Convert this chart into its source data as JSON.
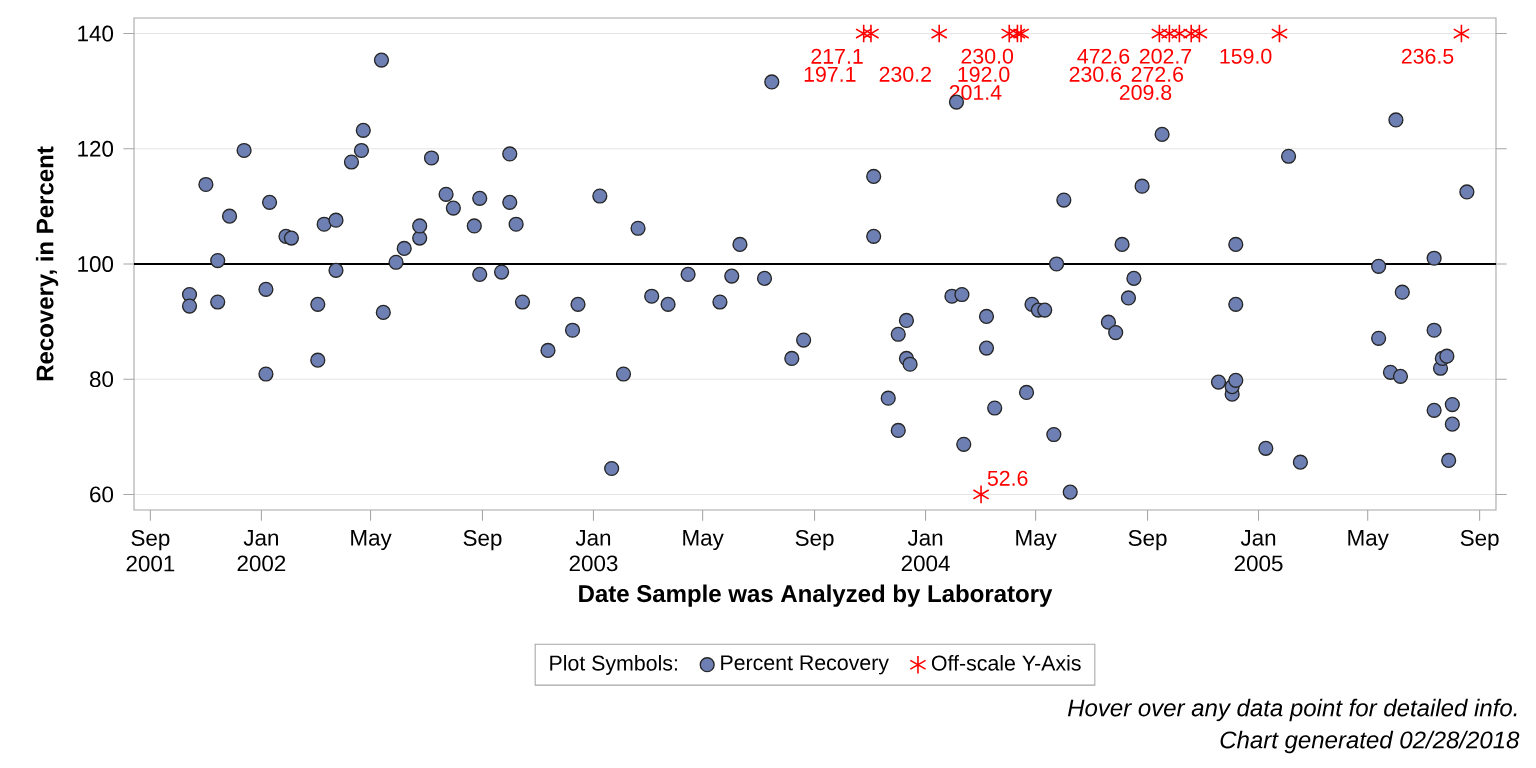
{
  "chart_data": {
    "type": "scatter",
    "xlabel": "Date Sample was Analyzed by Laboratory",
    "ylabel": "Recovery, in Percent",
    "legend_title": "Plot Symbols:",
    "legend": "bottom",
    "grid": "y",
    "xlim": [
      "2001-08-14",
      "2005-09-19"
    ],
    "ylim": [
      57.3,
      142.7
    ],
    "xticks": [
      {
        "value": "2001-09",
        "label": "Sep 2001"
      },
      {
        "value": "2002-01",
        "label": "Jan 2002"
      },
      {
        "value": "2002-05",
        "label": "May"
      },
      {
        "value": "2002-09",
        "label": "Sep"
      },
      {
        "value": "2003-01",
        "label": "Jan 2003"
      },
      {
        "value": "2003-05",
        "label": "May"
      },
      {
        "value": "2003-09",
        "label": "Sep"
      },
      {
        "value": "2004-01",
        "label": "Jan 2004"
      },
      {
        "value": "2004-05",
        "label": "May"
      },
      {
        "value": "2004-09",
        "label": "Sep"
      },
      {
        "value": "2005-01",
        "label": "Jan 2005"
      },
      {
        "value": "2005-05",
        "label": "May"
      },
      {
        "value": "2005-09",
        "label": "Sep"
      }
    ],
    "yticks": [
      60,
      80,
      100,
      120,
      140
    ],
    "ref_lines": [
      {
        "axis": "y",
        "value": 100,
        "color": "#000000"
      }
    ],
    "series": [
      {
        "name": "Percent Recovery",
        "color": "#6d7fb3",
        "marker": "circle",
        "x": [
          "2001-10-14",
          "2001-10-14",
          "2001-11-01",
          "2001-11-14",
          "2001-11-14",
          "2001-11-27",
          "2001-12-13",
          "2002-01-06",
          "2002-01-06",
          "2002-01-10",
          "2002-01-28",
          "2002-02-03",
          "2002-03-04",
          "2002-03-04",
          "2002-03-11",
          "2002-03-24",
          "2002-03-24",
          "2002-04-10",
          "2002-04-21",
          "2002-04-23",
          "2002-05-13",
          "2002-05-15",
          "2002-05-29",
          "2002-06-07",
          "2002-06-24",
          "2002-06-24",
          "2002-07-07",
          "2002-07-23",
          "2002-07-31",
          "2002-08-23",
          "2002-08-29",
          "2002-08-29",
          "2002-09-22",
          "2002-10-01",
          "2002-10-01",
          "2002-10-08",
          "2002-10-15",
          "2002-11-12",
          "2002-12-09",
          "2002-12-15",
          "2003-01-08",
          "2003-01-21",
          "2003-02-03",
          "2003-02-19",
          "2003-03-06",
          "2003-03-24",
          "2003-04-15",
          "2003-05-20",
          "2003-06-02",
          "2003-06-11",
          "2003-07-08",
          "2003-07-16",
          "2003-08-07",
          "2003-08-20",
          "2003-11-05",
          "2003-11-05",
          "2003-11-21",
          "2003-12-02",
          "2003-12-02",
          "2003-12-11",
          "2003-12-11",
          "2003-12-15",
          "2004-01-30",
          "2004-02-04",
          "2004-02-10",
          "2004-02-12",
          "2004-03-08",
          "2004-03-08",
          "2004-03-17",
          "2004-04-21",
          "2004-04-27",
          "2004-05-04",
          "2004-05-11",
          "2004-05-21",
          "2004-05-24",
          "2004-06-01",
          "2004-06-08",
          "2004-07-20",
          "2004-07-28",
          "2004-08-04",
          "2004-08-11",
          "2004-08-17",
          "2004-08-26",
          "2004-09-17",
          "2004-11-18",
          "2004-12-03",
          "2004-12-03",
          "2004-12-07",
          "2004-12-07",
          "2004-12-07",
          "2005-01-09",
          "2005-02-03",
          "2005-02-16",
          "2005-05-13",
          "2005-05-13",
          "2005-05-26",
          "2005-06-01",
          "2005-06-06",
          "2005-06-08",
          "2005-07-13",
          "2005-07-13",
          "2005-07-13",
          "2005-07-20",
          "2005-07-22",
          "2005-07-27",
          "2005-07-29",
          "2005-08-02",
          "2005-08-02",
          "2005-08-18"
        ],
        "values": [
          94.7,
          92.7,
          113.8,
          100.6,
          93.4,
          108.3,
          119.7,
          95.6,
          80.9,
          110.7,
          104.8,
          104.5,
          93.0,
          83.3,
          106.9,
          107.6,
          98.9,
          117.7,
          119.7,
          123.2,
          135.4,
          91.6,
          100.3,
          102.7,
          104.5,
          106.6,
          118.4,
          112.1,
          109.7,
          106.6,
          111.4,
          98.2,
          98.6,
          119.1,
          110.7,
          106.9,
          93.4,
          85.0,
          88.5,
          93.0,
          111.8,
          64.5,
          80.9,
          106.2,
          94.4,
          93.0,
          98.2,
          93.4,
          97.9,
          103.4,
          97.5,
          131.6,
          83.6,
          86.8,
          115.2,
          104.8,
          76.7,
          87.8,
          71.1,
          90.2,
          83.6,
          82.6,
          94.4,
          128.1,
          94.7,
          68.7,
          90.9,
          85.4,
          75.0,
          77.7,
          93.0,
          92.0,
          92.0,
          70.4,
          100.0,
          111.1,
          60.4,
          89.9,
          88.1,
          103.4,
          94.1,
          97.5,
          113.5,
          122.5,
          79.5,
          77.4,
          78.7,
          79.8,
          93.0,
          103.4,
          68.0,
          118.7,
          65.6,
          99.6,
          87.1,
          81.2,
          125.0,
          80.5,
          95.1,
          101.0,
          88.5,
          74.6,
          81.9,
          83.6,
          84.0,
          65.9,
          75.6,
          72.2,
          112.5
        ]
      },
      {
        "name": "Off-scale Y-Axis",
        "color": "#ff0000",
        "marker": "cross",
        "x": [
          "2003-10-25",
          "2003-11-02",
          "2004-01-16",
          "2004-03-02",
          "2004-04-02",
          "2004-04-11",
          "2004-04-15",
          "2004-09-14",
          "2004-09-25",
          "2004-10-06",
          "2004-10-19",
          "2004-10-28",
          "2005-01-24",
          "2005-08-12"
        ],
        "values": [
          140,
          140,
          140,
          60,
          140,
          140,
          140,
          140,
          140,
          140,
          140,
          140,
          140,
          140
        ]
      }
    ],
    "annotations": [
      {
        "text": "197.1",
        "x": "2003-10-25",
        "y": 140
      },
      {
        "text": "217.1",
        "x": "2003-11-02",
        "y": 140
      },
      {
        "text": "230.2",
        "x": "2004-01-16",
        "y": 140
      },
      {
        "text": "52.6",
        "x": "2004-03-02",
        "y": 60
      },
      {
        "text": "201.4",
        "x": "2004-04-02",
        "y": 140
      },
      {
        "text": "192.0",
        "x": "2004-04-11",
        "y": 140
      },
      {
        "text": "230.0",
        "x": "2004-04-15",
        "y": 140
      },
      {
        "text": "230.6",
        "x": "2004-09-14",
        "y": 140
      },
      {
        "text": "472.6",
        "x": "2004-09-25",
        "y": 140
      },
      {
        "text": "209.8",
        "x": "2004-10-06",
        "y": 140
      },
      {
        "text": "272.6",
        "x": "2004-10-19",
        "y": 140
      },
      {
        "text": "202.7",
        "x": "2004-10-28",
        "y": 140
      },
      {
        "text": "159.0",
        "x": "2005-01-24",
        "y": 140
      },
      {
        "text": "236.5",
        "x": "2005-08-12",
        "y": 140
      },
      "Hover over any data point for detailed info.",
      "Chart generated 02/28/2018"
    ]
  }
}
